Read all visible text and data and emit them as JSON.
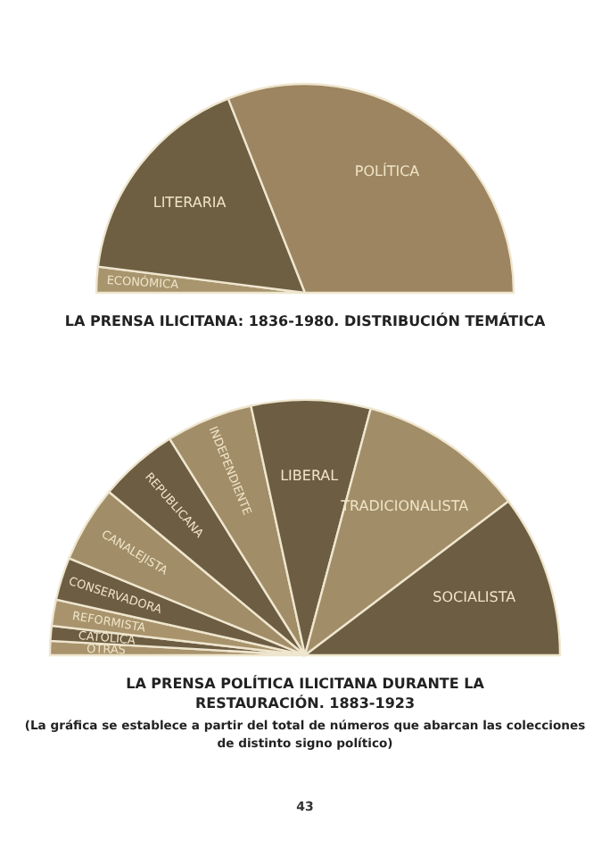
{
  "chart_data": [
    {
      "type": "pie",
      "title": "LA PRENSA ILICITANA: 1836-1980. DISTRIBUCIÓN TEMÁTICA",
      "categories": [
        "ECONÓMICA",
        "LITERARIA",
        "POLÍTICA"
      ],
      "values": [
        4,
        34,
        62
      ],
      "colors": [
        "#a8956e",
        "#6e5f43",
        "#9c8560"
      ]
    },
    {
      "type": "pie",
      "title": "LA PRENSA POLÍTICA ILICITANA DURANTE LA RESTAURACIÓN. 1883-1923",
      "subtitle": "(La gráfica se establece a partir del total de números que abarcan las colecciones de distinto signo político)",
      "categories": [
        "OTRAS",
        "CATÓLICA",
        "REFORMISTA",
        "CONSERVADORA",
        "CANALEJISTA",
        "REPUBLICANA",
        "INDEPENDIENTE",
        "LIBERAL",
        "TRADICIONALISTA",
        "SOCIALISTA"
      ],
      "values": [
        1.8,
        1.9,
        3.3,
        5.4,
        9.7,
        10.1,
        11,
        15.1,
        21.1,
        20.6
      ],
      "colors": [
        "#a8936c",
        "#6d5d42",
        "#a8936c",
        "#6d5d42",
        "#a18d67",
        "#6d5d42",
        "#a18d67",
        "#6d5d42",
        "#a18d67",
        "#6d5d42"
      ],
      "annotations": [
        "43"
      ]
    }
  ]
}
